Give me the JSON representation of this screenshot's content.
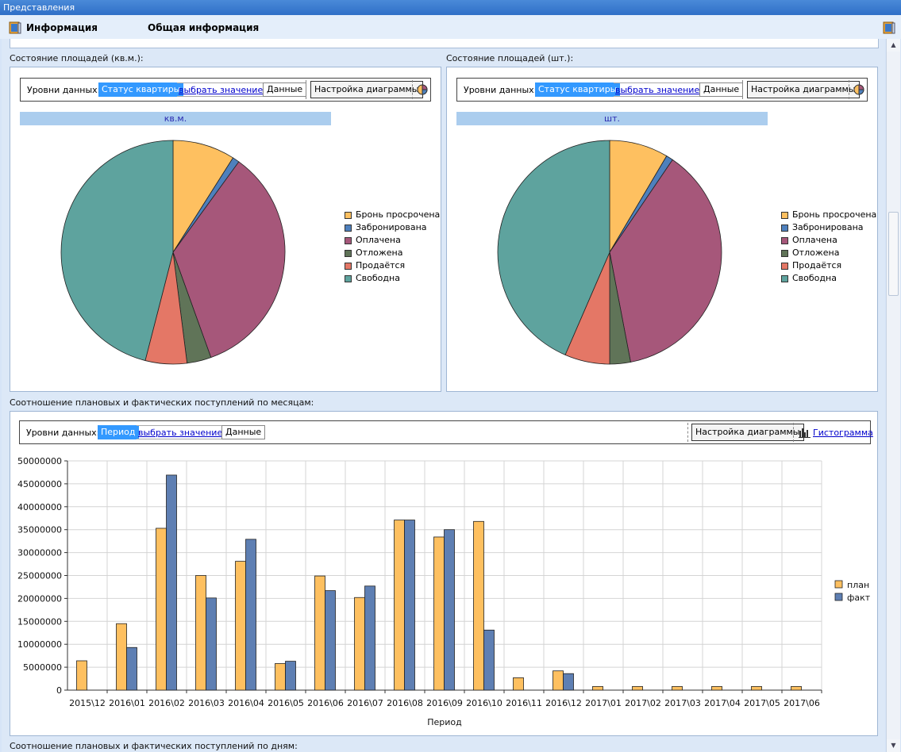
{
  "window": {
    "title": "Представления"
  },
  "tabs": [
    {
      "label": "Информация"
    },
    {
      "label": "Общая информация"
    }
  ],
  "colors": {
    "bron": "#fec060",
    "zabron": "#4e80bd",
    "oplachena": "#a6577a",
    "otlozhena": "#607458",
    "prodaetsya": "#e47766",
    "svobodna": "#5ea39e",
    "plan": "#fec060",
    "fakt": "#5e7fb3",
    "accent_selected": "#3399ff"
  },
  "pie_left": {
    "section_label": "Состояние площадей (кв.м.):",
    "toolbar": {
      "levels_label": "Уровни данных:",
      "level_selected": "Статус квартиры",
      "choose_value": "выбрать значение",
      "data_button": "Данные",
      "config_button": "Настройка диаграммы"
    },
    "caption": "кв.м."
  },
  "pie_right": {
    "section_label": "Состояние площадей (шт.):",
    "toolbar": {
      "levels_label": "Уровни данных:",
      "level_selected": "Статус квартиры",
      "choose_value": "выбрать значение",
      "data_button": "Данные",
      "config_button": "Настройка диаграммы"
    },
    "caption": "шт."
  },
  "bar_section": {
    "section_label": "Соотношение плановых и фактических поступлений по месяцам:",
    "toolbar": {
      "levels_label": "Уровни данных:",
      "level_selected": "Период",
      "choose_value": "выбрать значение",
      "data_button": "Данные",
      "config_button": "Настройка диаграммы",
      "chart_type_link": "Гистограмма"
    }
  },
  "bottom_label": "Соотношение плановых и фактических поступлений по дням:",
  "chart_data": [
    {
      "type": "pie",
      "categories": [
        "Бронь просрочена",
        "Забронирована",
        "Оплачена",
        "Отложена",
        "Продаётся",
        "Свободна"
      ],
      "values": [
        9.0,
        1.0,
        34.5,
        3.5,
        6.0,
        46.0
      ],
      "legend": "right"
    },
    {
      "type": "pie",
      "categories": [
        "Бронь просрочена",
        "Забронирована",
        "Оплачена",
        "Отложена",
        "Продаётся",
        "Свободна"
      ],
      "values": [
        8.5,
        1.0,
        37.5,
        3.0,
        6.5,
        43.5
      ],
      "legend": "right"
    },
    {
      "type": "bar",
      "categories": [
        "2015\\12",
        "2016\\01",
        "2016\\02",
        "2016\\03",
        "2016\\04",
        "2016\\05",
        "2016\\06",
        "2016\\07",
        "2016\\08",
        "2016\\09",
        "2016\\10",
        "2016\\11",
        "2016\\12",
        "2017\\01",
        "2017\\02",
        "2017\\03",
        "2017\\04",
        "2017\\05",
        "2017\\06"
      ],
      "series": [
        {
          "name": "план",
          "values": [
            6400000,
            14500000,
            35300000,
            25000000,
            28100000,
            5800000,
            24900000,
            20200000,
            37100000,
            33400000,
            36800000,
            2700000,
            4200000,
            800000,
            800000,
            800000,
            800000,
            800000,
            800000
          ]
        },
        {
          "name": "факт",
          "values": [
            0,
            9300000,
            46900000,
            20100000,
            32900000,
            6300000,
            21700000,
            22700000,
            37100000,
            35000000,
            13100000,
            0,
            3600000,
            0,
            0,
            0,
            0,
            0,
            0
          ]
        }
      ],
      "xlabel": "Период",
      "ylabel": "",
      "ylim": [
        0,
        50000000
      ],
      "yticks": [
        "0",
        "5000000",
        "10000000",
        "15000000",
        "20000000",
        "25000000",
        "30000000",
        "35000000",
        "40000000",
        "45000000",
        "50000000"
      ],
      "grid": true,
      "legend": "right"
    }
  ]
}
